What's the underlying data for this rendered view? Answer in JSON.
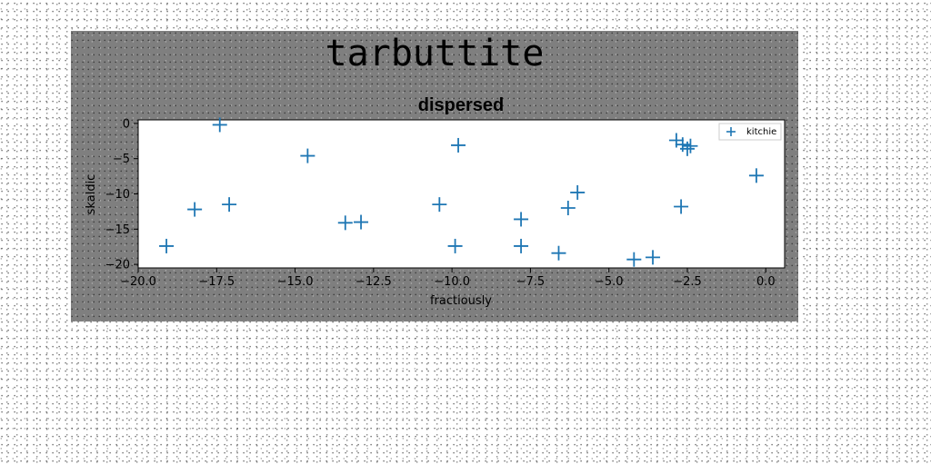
{
  "figure": {
    "title": "tarbuttite"
  },
  "chart_data": {
    "type": "scatter",
    "title": "dispersed",
    "xlabel": "fractiously",
    "ylabel": "skaldic",
    "xlim": [
      -20.0,
      0.6
    ],
    "ylim": [
      -20.5,
      0.5
    ],
    "xticks": [
      "−20.0",
      "−17.5",
      "−15.0",
      "−12.5",
      "−10.0",
      "−7.5",
      "−5.0",
      "−2.5",
      "0.0"
    ],
    "xtick_values": [
      -20.0,
      -17.5,
      -15.0,
      -12.5,
      -10.0,
      -7.5,
      -5.0,
      -2.5,
      0.0
    ],
    "yticks": [
      "0",
      "−5",
      "−10",
      "−15",
      "−20"
    ],
    "ytick_values": [
      0,
      -5,
      -10,
      -15,
      -20
    ],
    "grid": false,
    "legend_position": "top-right",
    "marker": "+",
    "colors": {
      "series": "#1f77b4",
      "axes_bg": "#ffffff",
      "figure_bg": "#808080"
    },
    "series": [
      {
        "name": "kitchie",
        "x": [
          -19.1,
          -18.2,
          -17.4,
          -17.1,
          -14.6,
          -13.4,
          -12.9,
          -10.4,
          -9.9,
          -9.8,
          -7.8,
          -7.8,
          -6.6,
          -6.3,
          -6.0,
          -4.2,
          -3.6,
          -2.85,
          -2.7,
          -2.65,
          -2.5,
          -2.4,
          -0.3
        ],
        "y": [
          -17.4,
          -12.2,
          -0.2,
          -11.5,
          -4.6,
          -14.1,
          -14.0,
          -11.5,
          -17.4,
          -3.1,
          -13.6,
          -17.4,
          -18.4,
          -12.0,
          -9.8,
          -19.3,
          -19.0,
          -2.4,
          -11.8,
          -3.0,
          -3.6,
          -3.2,
          -7.4
        ]
      }
    ]
  }
}
